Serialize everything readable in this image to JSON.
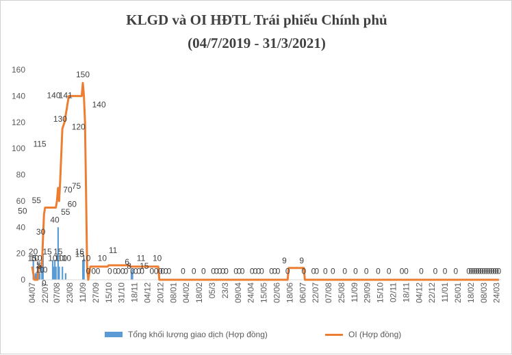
{
  "chart_data": {
    "type": "bar",
    "title": "KLGD và OI HĐTL Trái phiếu Chính phủ",
    "subtitle": "(04/7/2019 - 31/3/2021)",
    "ylim": [
      0,
      160
    ],
    "yticks": [
      0,
      20,
      40,
      60,
      80,
      100,
      120,
      140,
      160
    ],
    "grid": false,
    "legend_position": "bottom",
    "xticks": [
      {
        "label": "04/07",
        "x": 0
      },
      {
        "label": "22/07",
        "x": 12
      },
      {
        "label": "07/08",
        "x": 23
      },
      {
        "label": "23/08",
        "x": 35
      },
      {
        "label": "11/09",
        "x": 47
      },
      {
        "label": "27/09",
        "x": 59
      },
      {
        "label": "15/10",
        "x": 71
      },
      {
        "label": "31/10",
        "x": 83
      },
      {
        "label": "18/11",
        "x": 95
      },
      {
        "label": "04/12",
        "x": 107
      },
      {
        "label": "20/12",
        "x": 119
      },
      {
        "label": "08/01",
        "x": 131
      },
      {
        "label": "04/02",
        "x": 143
      },
      {
        "label": "18/02",
        "x": 155
      },
      {
        "label": "05/3",
        "x": 167
      },
      {
        "label": "23/3",
        "x": 179
      },
      {
        "label": "09/04",
        "x": 191
      },
      {
        "label": "24/04",
        "x": 203
      },
      {
        "label": "15/05",
        "x": 215
      },
      {
        "label": "02/06",
        "x": 227
      },
      {
        "label": "18/06",
        "x": 239
      },
      {
        "label": "06/07",
        "x": 251
      },
      {
        "label": "22/07",
        "x": 263
      },
      {
        "label": "07/08",
        "x": 275
      },
      {
        "label": "25/08",
        "x": 287
      },
      {
        "label": "11/09",
        "x": 299
      },
      {
        "label": "29/09",
        "x": 311
      },
      {
        "label": "15/10",
        "x": 323
      },
      {
        "label": "02/11",
        "x": 335
      },
      {
        "label": "18/11",
        "x": 347
      },
      {
        "label": "04/12",
        "x": 359
      },
      {
        "label": "22/12",
        "x": 371
      },
      {
        "label": "11/01",
        "x": 383
      },
      {
        "label": "26/01",
        "x": 395
      },
      {
        "label": "18/02",
        "x": 407
      },
      {
        "label": "08/03",
        "x": 419
      },
      {
        "label": "24/03",
        "x": 431
      }
    ],
    "series": [
      {
        "name": "Tổng khối lượng giao dịch  (Hợp đồng)",
        "kind": "bar",
        "color": "#5b9bd5",
        "points": [
          {
            "x": 1,
            "y": 15
          },
          {
            "x": 3,
            "y": 5
          },
          {
            "x": 4,
            "y": 5
          },
          {
            "x": 5,
            "y": 10
          },
          {
            "x": 6,
            "y": 10
          },
          {
            "x": 7,
            "y": 5
          },
          {
            "x": 9,
            "y": 10
          },
          {
            "x": 10,
            "y": 20
          },
          {
            "x": 19,
            "y": 15
          },
          {
            "x": 20,
            "y": 10
          },
          {
            "x": 21,
            "y": 15
          },
          {
            "x": 22,
            "y": 10
          },
          {
            "x": 24,
            "y": 40
          },
          {
            "x": 25,
            "y": 10
          },
          {
            "x": 28,
            "y": 10
          },
          {
            "x": 31,
            "y": 5
          },
          {
            "x": 47,
            "y": 15
          },
          {
            "x": 48,
            "y": 16
          },
          {
            "x": 92,
            "y": 6
          },
          {
            "x": 93,
            "y": 8
          }
        ]
      },
      {
        "name": "OI (Hợp đồng)",
        "kind": "line",
        "color": "#ed7d31",
        "points": [
          {
            "x": 0,
            "y": 10
          },
          {
            "x": 2,
            "y": 0
          },
          {
            "x": 5,
            "y": 0
          },
          {
            "x": 6,
            "y": 10
          },
          {
            "x": 9,
            "y": 10
          },
          {
            "x": 10,
            "y": 30
          },
          {
            "x": 11,
            "y": 50
          },
          {
            "x": 12,
            "y": 55
          },
          {
            "x": 22,
            "y": 55
          },
          {
            "x": 23,
            "y": 60
          },
          {
            "x": 24,
            "y": 70
          },
          {
            "x": 25,
            "y": 60
          },
          {
            "x": 26,
            "y": 75
          },
          {
            "x": 28,
            "y": 115
          },
          {
            "x": 30,
            "y": 120
          },
          {
            "x": 32,
            "y": 130
          },
          {
            "x": 34,
            "y": 140
          },
          {
            "x": 46,
            "y": 140
          },
          {
            "x": 47,
            "y": 150
          },
          {
            "x": 48,
            "y": 140
          },
          {
            "x": 49,
            "y": 120
          },
          {
            "x": 51,
            "y": 10
          },
          {
            "x": 52,
            "y": 0
          },
          {
            "x": 54,
            "y": 10
          },
          {
            "x": 70,
            "y": 10
          },
          {
            "x": 71,
            "y": 11
          },
          {
            "x": 90,
            "y": 11
          },
          {
            "x": 91,
            "y": 10
          },
          {
            "x": 117,
            "y": 10
          },
          {
            "x": 118,
            "y": 0
          },
          {
            "x": 237,
            "y": 0
          },
          {
            "x": 238,
            "y": 9
          },
          {
            "x": 252,
            "y": 9
          },
          {
            "x": 253,
            "y": 0
          },
          {
            "x": 433,
            "y": 0
          }
        ]
      }
    ],
    "data_labels": [
      {
        "text": "20",
        "x": 1,
        "y": 22
      },
      {
        "text": "15",
        "x": 0,
        "y": 17
      },
      {
        "text": "10",
        "x": 2,
        "y": 17
      },
      {
        "text": "10",
        "x": 5,
        "y": 17
      },
      {
        "text": "5",
        "x": 6,
        "y": 12
      },
      {
        "text": "5",
        "x": 7,
        "y": 11
      },
      {
        "text": "10",
        "x": 7,
        "y": 8
      },
      {
        "text": "10",
        "x": 10,
        "y": 8
      },
      {
        "text": "0",
        "x": 11,
        "y": -2
      },
      {
        "text": "50",
        "x": -9,
        "y": 53
      },
      {
        "text": "55",
        "x": 4,
        "y": 61
      },
      {
        "text": "30",
        "x": 8,
        "y": 37
      },
      {
        "text": "115",
        "x": 7,
        "y": 104
      },
      {
        "text": "140",
        "x": 20,
        "y": 141
      },
      {
        "text": "141",
        "x": 31,
        "y": 141
      },
      {
        "text": "130",
        "x": 26,
        "y": 123
      },
      {
        "text": "70",
        "x": 33,
        "y": 69
      },
      {
        "text": "75",
        "x": 41,
        "y": 72
      },
      {
        "text": "60",
        "x": 37,
        "y": 58
      },
      {
        "text": "55",
        "x": 31,
        "y": 52
      },
      {
        "text": "40",
        "x": 21,
        "y": 46
      },
      {
        "text": "150",
        "x": 47,
        "y": 157
      },
      {
        "text": "140",
        "x": 62,
        "y": 134
      },
      {
        "text": "120",
        "x": 43,
        "y": 117
      },
      {
        "text": "15",
        "x": 14,
        "y": 22
      },
      {
        "text": "15",
        "x": 24,
        "y": 22
      },
      {
        "text": "10",
        "x": 19,
        "y": 17
      },
      {
        "text": "10",
        "x": 25,
        "y": 17
      },
      {
        "text": "10",
        "x": 28,
        "y": 17
      },
      {
        "text": "10",
        "x": 32,
        "y": 17
      },
      {
        "text": "16",
        "x": 44,
        "y": 22
      },
      {
        "text": "15",
        "x": 44,
        "y": 20
      },
      {
        "text": "10",
        "x": 50,
        "y": 17
      },
      {
        "text": "10",
        "x": 65,
        "y": 17
      },
      {
        "text": "11",
        "x": 75,
        "y": 23
      },
      {
        "text": "11",
        "x": 101,
        "y": 17
      },
      {
        "text": "6",
        "x": 88,
        "y": 14
      },
      {
        "text": "8",
        "x": 90,
        "y": 11
      },
      {
        "text": "15",
        "x": 104,
        "y": 11
      },
      {
        "text": "10",
        "x": 116,
        "y": 17
      },
      {
        "text": "9",
        "x": 234,
        "y": 15
      },
      {
        "text": "9",
        "x": 250,
        "y": 15
      },
      {
        "text": "0",
        "x": 52,
        "y": 7
      },
      {
        "text": "0",
        "x": 57,
        "y": 7
      },
      {
        "text": "0",
        "x": 61,
        "y": 7
      },
      {
        "text": "0",
        "x": 72,
        "y": 7
      },
      {
        "text": "0",
        "x": 77,
        "y": 7
      },
      {
        "text": "0",
        "x": 80,
        "y": 7
      },
      {
        "text": "0",
        "x": 84,
        "y": 7
      },
      {
        "text": "0",
        "x": 87,
        "y": 7
      },
      {
        "text": "0",
        "x": 93,
        "y": 7
      },
      {
        "text": "0",
        "x": 96,
        "y": 7
      },
      {
        "text": "0",
        "x": 99,
        "y": 7
      },
      {
        "text": "0",
        "x": 102,
        "y": 7
      },
      {
        "text": "0",
        "x": 111,
        "y": 7
      },
      {
        "text": "0",
        "x": 115,
        "y": 7
      },
      {
        "text": "0",
        "x": 119,
        "y": 7
      },
      {
        "text": "0",
        "x": 121,
        "y": 7
      },
      {
        "text": "0",
        "x": 124,
        "y": 7
      },
      {
        "text": "0",
        "x": 127,
        "y": 7
      },
      {
        "text": "0",
        "x": 140,
        "y": 7
      },
      {
        "text": "0",
        "x": 150,
        "y": 7
      },
      {
        "text": "0",
        "x": 159,
        "y": 7
      },
      {
        "text": "0",
        "x": 168,
        "y": 7
      },
      {
        "text": "0",
        "x": 171,
        "y": 7
      },
      {
        "text": "0",
        "x": 174,
        "y": 7
      },
      {
        "text": "0",
        "x": 177,
        "y": 7
      },
      {
        "text": "0",
        "x": 180,
        "y": 7
      },
      {
        "text": "0",
        "x": 189,
        "y": 7
      },
      {
        "text": "0",
        "x": 192,
        "y": 7
      },
      {
        "text": "0",
        "x": 195,
        "y": 7
      },
      {
        "text": "0",
        "x": 204,
        "y": 7
      },
      {
        "text": "0",
        "x": 207,
        "y": 7
      },
      {
        "text": "0",
        "x": 210,
        "y": 7
      },
      {
        "text": "0",
        "x": 213,
        "y": 7
      },
      {
        "text": "0",
        "x": 222,
        "y": 7
      },
      {
        "text": "0",
        "x": 225,
        "y": 7
      },
      {
        "text": "0",
        "x": 228,
        "y": 7
      },
      {
        "text": "0",
        "x": 237,
        "y": 7
      },
      {
        "text": "0",
        "x": 252,
        "y": 7
      },
      {
        "text": "0",
        "x": 261,
        "y": 7
      },
      {
        "text": "0",
        "x": 264,
        "y": 7
      },
      {
        "text": "0",
        "x": 272,
        "y": 7
      },
      {
        "text": "0",
        "x": 279,
        "y": 7
      },
      {
        "text": "0",
        "x": 290,
        "y": 7
      },
      {
        "text": "0",
        "x": 300,
        "y": 7
      },
      {
        "text": "0",
        "x": 310,
        "y": 7
      },
      {
        "text": "0",
        "x": 321,
        "y": 7
      },
      {
        "text": "0",
        "x": 331,
        "y": 7
      },
      {
        "text": "0",
        "x": 343,
        "y": 7
      },
      {
        "text": "0",
        "x": 347,
        "y": 7
      },
      {
        "text": "0",
        "x": 361,
        "y": 7
      },
      {
        "text": "0",
        "x": 374,
        "y": 7
      },
      {
        "text": "0",
        "x": 383,
        "y": 7
      },
      {
        "text": "0",
        "x": 393,
        "y": 7
      },
      {
        "text": "0",
        "x": 405,
        "y": 7
      },
      {
        "text": "0",
        "x": 407,
        "y": 7
      },
      {
        "text": "0",
        "x": 409,
        "y": 7
      },
      {
        "text": "0",
        "x": 411,
        "y": 7
      },
      {
        "text": "0",
        "x": 413,
        "y": 7
      },
      {
        "text": "0",
        "x": 415,
        "y": 7
      },
      {
        "text": "0",
        "x": 417,
        "y": 7
      },
      {
        "text": "0",
        "x": 419,
        "y": 7
      },
      {
        "text": "0",
        "x": 421,
        "y": 7
      },
      {
        "text": "0",
        "x": 423,
        "y": 7
      },
      {
        "text": "0",
        "x": 425,
        "y": 7
      },
      {
        "text": "0",
        "x": 427,
        "y": 7
      },
      {
        "text": "0",
        "x": 429,
        "y": 7
      },
      {
        "text": "0",
        "x": 431,
        "y": 7
      },
      {
        "text": "0",
        "x": 433,
        "y": 7
      }
    ]
  }
}
